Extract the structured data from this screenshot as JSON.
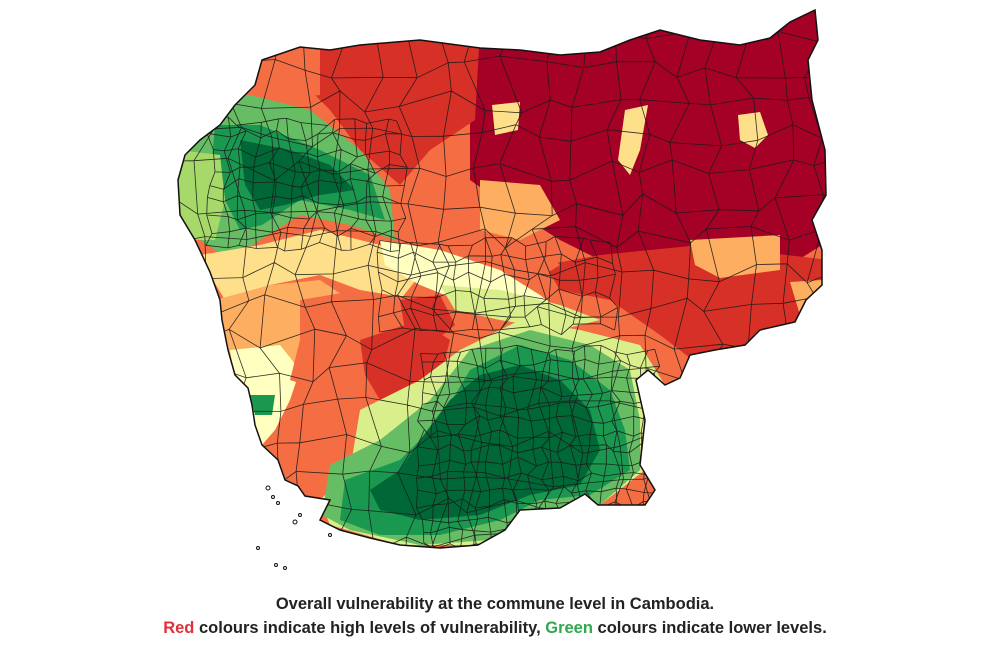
{
  "caption": {
    "line1": "Overall vulnerability at the commune level in Cambodia.",
    "line2_red_word": "Red",
    "line2_mid": " colours indicate high levels of vulnerability, ",
    "line2_green_word": "Green",
    "line2_end": " colours indicate lower levels."
  },
  "colors": {
    "high": "#a50026",
    "mid_high": "#d73027",
    "mid": "#f46d43",
    "mid_low": "#fdae61",
    "neutral": "#fee08b",
    "low_mid": "#d9ef8b",
    "low": "#66bd63",
    "lowest": "#006837",
    "border": "#1a1a1a",
    "caption_text": "#222222",
    "red_word": "#e0303a",
    "green_word": "#2fa84f"
  }
}
